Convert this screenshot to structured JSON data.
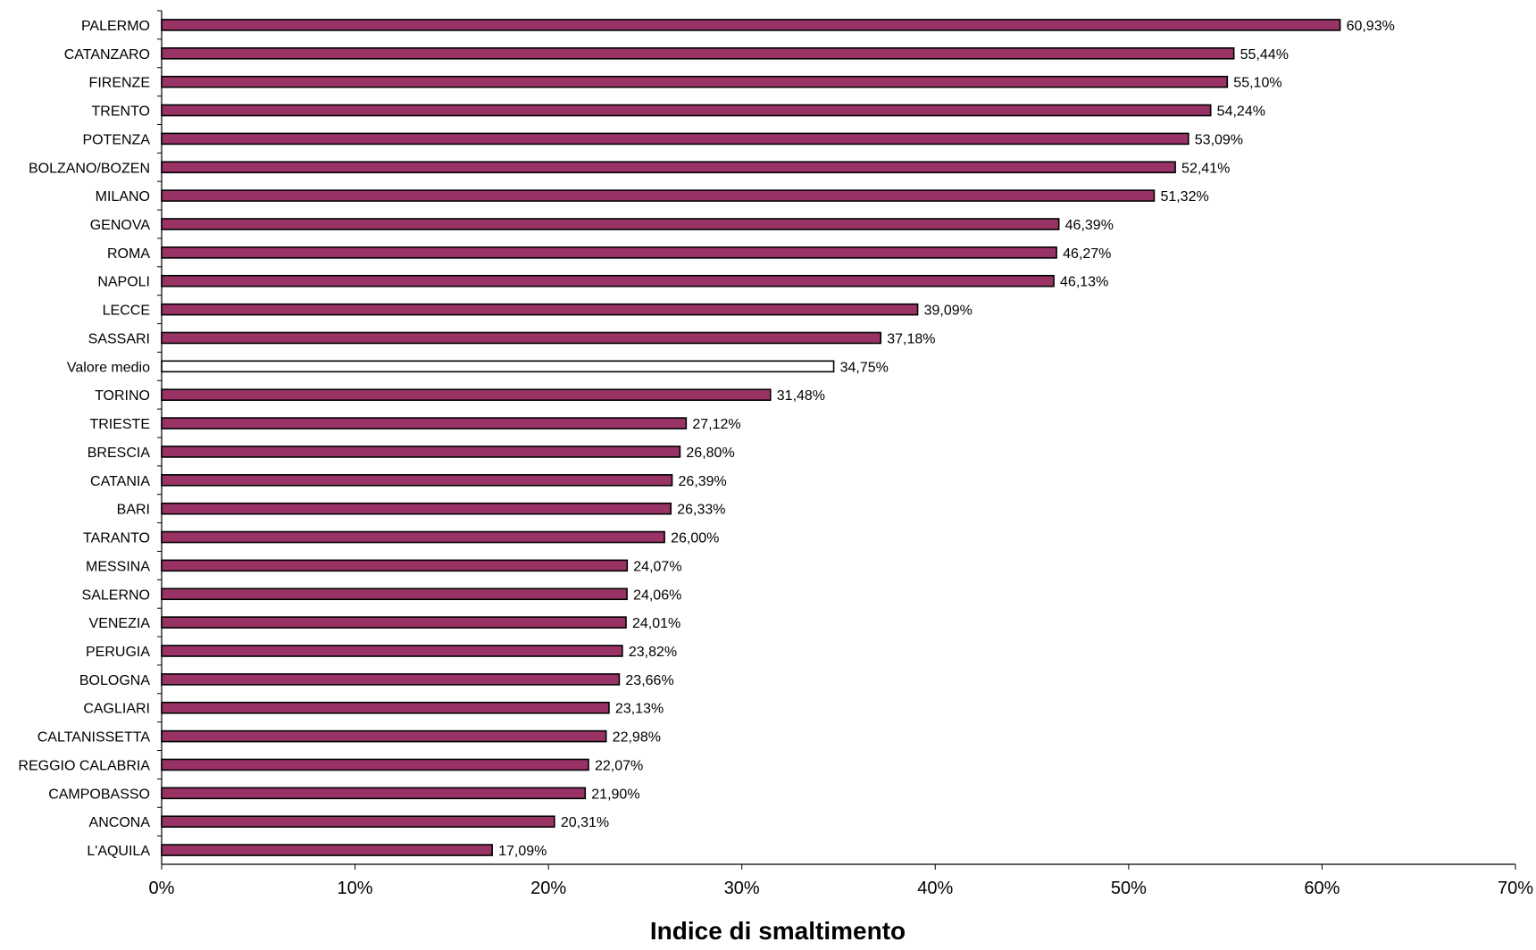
{
  "chart_data": {
    "type": "bar",
    "orientation": "horizontal",
    "categories": [
      "PALERMO",
      "CATANZARO",
      "FIRENZE",
      "TRENTO",
      "POTENZA",
      "BOLZANO/BOZEN",
      "MILANO",
      "GENOVA",
      "ROMA",
      "NAPOLI",
      "LECCE",
      "SASSARI",
      "Valore medio",
      "TORINO",
      "TRIESTE",
      "BRESCIA",
      "CATANIA",
      "BARI",
      "TARANTO",
      "MESSINA",
      "SALERNO",
      "VENEZIA",
      "PERUGIA",
      "BOLOGNA",
      "CAGLIARI",
      "CALTANISSETTA",
      "REGGIO CALABRIA",
      "CAMPOBASSO",
      "ANCONA",
      "L'AQUILA"
    ],
    "values": [
      60.93,
      55.44,
      55.1,
      54.24,
      53.09,
      52.41,
      51.32,
      46.39,
      46.27,
      46.13,
      39.09,
      37.18,
      34.75,
      31.48,
      27.12,
      26.8,
      26.39,
      26.33,
      26.0,
      24.07,
      24.06,
      24.01,
      23.82,
      23.66,
      23.13,
      22.98,
      22.07,
      21.9,
      20.31,
      17.09
    ],
    "value_labels": [
      "60,93%",
      "55,44%",
      "55,10%",
      "54,24%",
      "53,09%",
      "52,41%",
      "51,32%",
      "46,39%",
      "46,27%",
      "46,13%",
      "39,09%",
      "37,18%",
      "34,75%",
      "31,48%",
      "27,12%",
      "26,80%",
      "26,39%",
      "26,33%",
      "26,00%",
      "24,07%",
      "24,06%",
      "24,01%",
      "23,82%",
      "23,66%",
      "23,13%",
      "22,98%",
      "22,07%",
      "21,90%",
      "20,31%",
      "17,09%"
    ],
    "highlight_category": "Valore medio",
    "xlim": [
      0,
      70
    ],
    "x_ticks": [
      0,
      10,
      20,
      30,
      40,
      50,
      60,
      70
    ],
    "x_tick_labels": [
      "0%",
      "10%",
      "20%",
      "30%",
      "40%",
      "50%",
      "60%",
      "70%"
    ],
    "xlabel": "Indice di smaltimento",
    "ylabel": "",
    "title": "",
    "grid": false,
    "colors": {
      "bar": "#993366",
      "highlight_bar": "#ffffff",
      "outline": "#000000"
    }
  }
}
